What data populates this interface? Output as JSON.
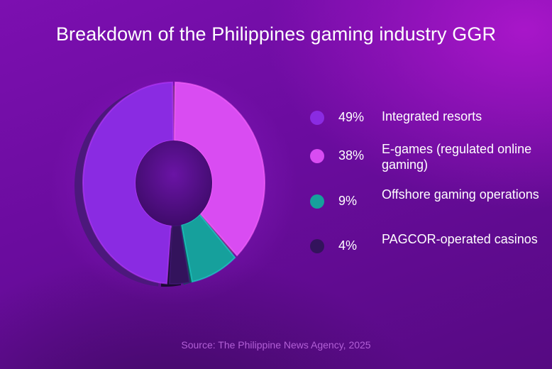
{
  "chart_data": {
    "type": "pie",
    "title": "Breakdown of the Philippines gaming industry GGR",
    "source": "Source: The Philippine News Agency, 2025",
    "categories": [
      "Integrated resorts",
      "E-games (regulated online gaming)",
      "Offshore gaming operations",
      "PAGCOR-operated casinos"
    ],
    "values": [
      49,
      38,
      9,
      4
    ],
    "value_labels": [
      "49%",
      "38%",
      "9%",
      "4%"
    ],
    "unit": "%",
    "legend_position": "right",
    "colors": [
      "#8a2be2",
      "#d94cf2",
      "#16a09c",
      "#33135c"
    ]
  }
}
